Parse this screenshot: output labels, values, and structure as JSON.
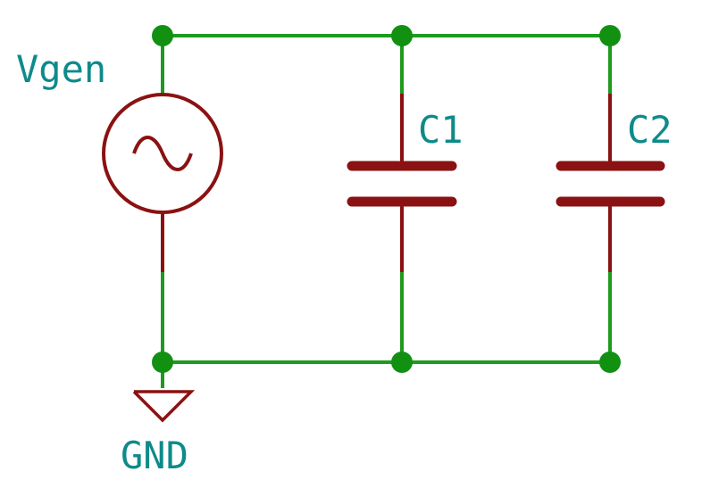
{
  "labels": {
    "source": "Vgen",
    "c1": "C1",
    "c2": "C2",
    "ground": "GND"
  },
  "colors": {
    "wire": "#1e9a1e",
    "junction": "#129012",
    "component": "#8a1212",
    "label": "#0f8a8a",
    "background": "#ffffff"
  }
}
